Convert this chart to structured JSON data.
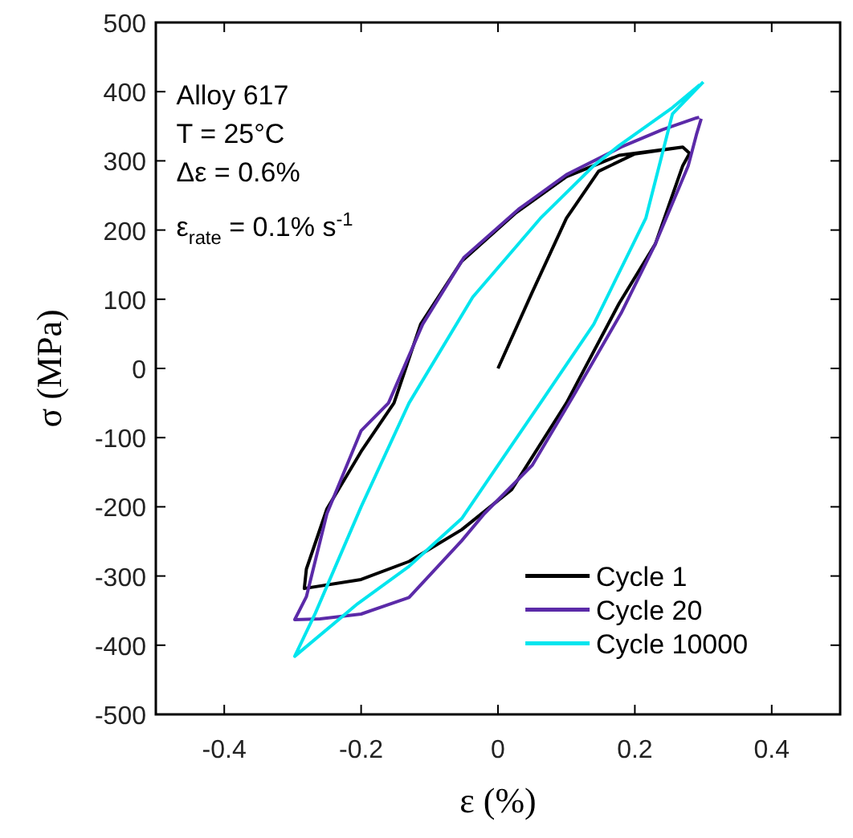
{
  "chart_data": {
    "type": "line",
    "xlabel": "ε (%)",
    "ylabel": "σ (MPa)",
    "xlim": [
      -0.5,
      0.5
    ],
    "ylim": [
      -500,
      500
    ],
    "xticks": [
      -0.4,
      -0.2,
      0,
      0.2,
      0.4
    ],
    "yticks": [
      -500,
      -400,
      -300,
      -200,
      -100,
      0,
      100,
      200,
      300,
      400,
      500
    ],
    "grid": false,
    "legend": "bottom right",
    "marker": "none",
    "line_style": "solid",
    "annotations": [
      "Alloy 617",
      "T = 25°C",
      "Δε = 0.6%",
      "ε$_{rate}$ = 0.1% s$^{-1}$"
    ],
    "series": [
      {
        "name": "Cycle 1",
        "color": "#000000",
        "x": [
          0,
          0.05,
          0.1,
          0.147,
          0.2,
          0.27,
          0.28,
          0.27,
          0.23,
          0.177,
          0.1,
          0.02,
          -0.053,
          -0.13,
          -0.2,
          -0.283,
          -0.28,
          -0.25,
          -0.2,
          -0.152,
          -0.113,
          -0.053,
          0.025,
          0.1,
          0.177,
          0.27
        ],
        "values": [
          0,
          110,
          217,
          285,
          310,
          320,
          311,
          293,
          180,
          94,
          -50,
          -175,
          -233,
          -279,
          -305,
          -318,
          -290,
          -203,
          -120,
          -50,
          64,
          155,
          224,
          277,
          308,
          320
        ]
      },
      {
        "name": "Cycle 20",
        "color": "#5b2aa8",
        "x": [
          0.297,
          0.29,
          0.278,
          0.23,
          0.18,
          0.11,
          0.05,
          -0.02,
          -0.053,
          -0.13,
          -0.2,
          -0.26,
          -0.297,
          -0.28,
          -0.25,
          -0.2,
          -0.16,
          -0.11,
          -0.05,
          0.03,
          0.1,
          0.18,
          0.24,
          0.29,
          0.294
        ],
        "values": [
          361,
          338,
          293,
          180,
          80,
          -40,
          -140,
          -210,
          -249,
          -331,
          -355,
          -362,
          -363,
          -330,
          -210,
          -90,
          -50,
          64,
          160,
          230,
          280,
          320,
          345,
          362,
          363
        ]
      },
      {
        "name": "Cycle 10000",
        "color": "#00e5ee",
        "x": [
          0.3,
          0.255,
          0.216,
          0.14,
          0.062,
          0,
          -0.053,
          -0.13,
          -0.205,
          -0.297,
          -0.267,
          -0.2,
          -0.13,
          -0.037,
          0.062,
          0.14,
          0.177,
          0.255,
          0.295
        ],
        "values": [
          414,
          368,
          217,
          64,
          -50,
          -140,
          -217,
          -286,
          -340,
          -416,
          -354,
          -200,
          -50,
          103,
          217,
          293,
          322,
          377,
          410
        ]
      }
    ]
  }
}
